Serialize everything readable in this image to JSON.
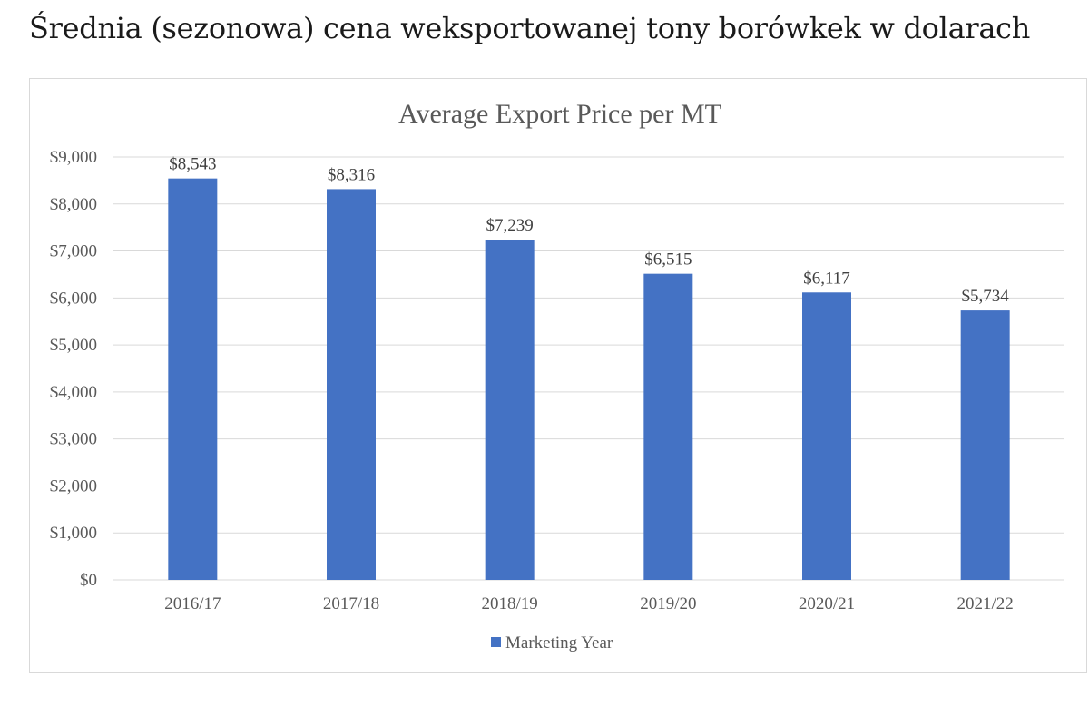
{
  "page": {
    "heading": "Średnia (sezonowa) cena weksportowanej tony borówkek w dolarach"
  },
  "chart_data": {
    "type": "bar",
    "title": "Average Export Price per MT",
    "xlabel": "",
    "ylabel": "",
    "categories": [
      "2016/17",
      "2017/18",
      "2018/19",
      "2019/20",
      "2020/21",
      "2021/22"
    ],
    "series": [
      {
        "name": "Marketing Year",
        "values": [
          8543,
          8316,
          7239,
          6515,
          6117,
          5734
        ],
        "data_labels": [
          "$8,543",
          "$8,316",
          "$7,239",
          "$6,515",
          "$6,117",
          "$5,734"
        ],
        "color": "#4472C4"
      }
    ],
    "ylim": [
      0,
      9000
    ],
    "y_ticks": [
      0,
      1000,
      2000,
      3000,
      4000,
      5000,
      6000,
      7000,
      8000,
      9000
    ],
    "y_tick_labels": [
      "$0",
      "$1,000",
      "$2,000",
      "$3,000",
      "$4,000",
      "$5,000",
      "$6,000",
      "$7,000",
      "$8,000",
      "$9,000"
    ],
    "grid": true,
    "legend_position": "bottom",
    "colors": {
      "bar": "#4472C4",
      "gridline": "#d9d9d9",
      "axis_text": "#595959"
    }
  }
}
